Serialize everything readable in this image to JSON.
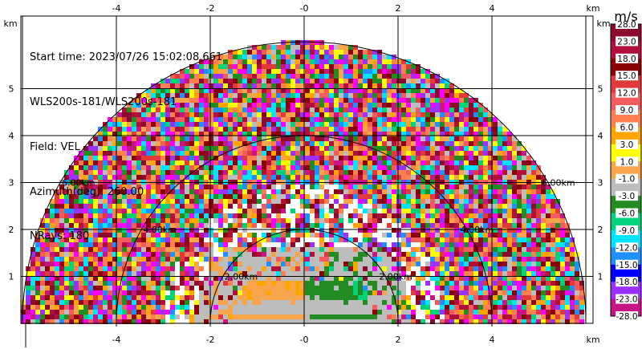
{
  "info": {
    "start_time": "Start time: 2023/07/26 15:02:08.661",
    "instrument": "WLS200s-181/WLS200s-181",
    "field": "Field: VEL",
    "azimuth": "Azimuth(deg): 260.00",
    "nrays": "NRays: 180"
  },
  "chart_data": {
    "type": "heatmap",
    "projection": "range-height (RHI)",
    "x_unit": "km",
    "y_unit": "km",
    "xlim": [
      -6,
      6
    ],
    "ylim": [
      0,
      5.9
    ],
    "x_ticks": [
      "-4",
      "-2",
      "-0",
      "2",
      "4"
    ],
    "y_ticks": [
      "1",
      "2",
      "3",
      "4",
      "5"
    ],
    "range_rings": [
      {
        "radius_km": 2,
        "label": "2.00km"
      },
      {
        "radius_km": 4,
        "label": "4.00km"
      },
      {
        "radius_km": 6,
        "label": "6.00km"
      }
    ],
    "max_range_km": 6,
    "grid": true,
    "colorbar": {
      "unit": "m/s",
      "labels": [
        "28.0",
        "23.0",
        "18.0",
        "15.0",
        "12.0",
        "9.0",
        "6.0",
        "3.0",
        "1.0",
        "-1.0",
        "-3.0",
        "-6.0",
        "-9.0",
        "-12.0",
        "-15.0",
        "-18.0",
        "-23.0",
        "-28.0"
      ],
      "colors": [
        "#8b0a2e",
        "#b0103a",
        "#8b0000",
        "#e03a3a",
        "#f25c5c",
        "#ff7f50",
        "#ffa500",
        "#ffff00",
        "#f7a44a",
        "#bdbdbd",
        "#228b22",
        "#00d27a",
        "#00e5ff",
        "#1e90ff",
        "#0000ff",
        "#9b30ff",
        "#c71585",
        "#8b0a2e"
      ]
    }
  }
}
